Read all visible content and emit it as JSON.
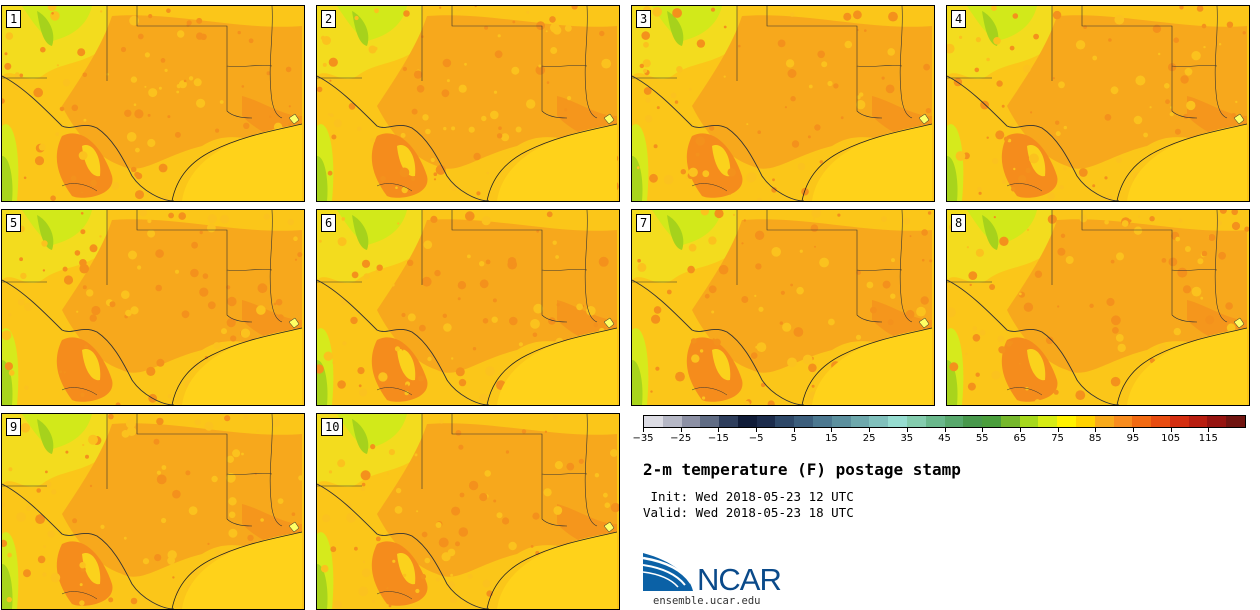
{
  "panels": [
    "1",
    "2",
    "3",
    "4",
    "5",
    "6",
    "7",
    "8",
    "9",
    "10"
  ],
  "colorbar": {
    "colors": [
      "#dcdce4",
      "#b6b8c6",
      "#8c90a4",
      "#606c84",
      "#2e3e5c",
      "#101c38",
      "#1c2c4c",
      "#2e4868",
      "#3c5e7c",
      "#4c7890",
      "#5c909e",
      "#6ea8ac",
      "#80c0bc",
      "#96dcd0",
      "#84ccae",
      "#6ab88c",
      "#58a86c",
      "#48984c",
      "#4a9e3c",
      "#76b82c",
      "#a6d81c",
      "#d6ec14",
      "#fff200",
      "#ffd200",
      "#f8aa1a",
      "#f88c1e",
      "#f26a12",
      "#e84c10",
      "#d42e10",
      "#b81e10",
      "#961410",
      "#701410"
    ],
    "tick_labels": [
      "−35",
      "−25",
      "−15",
      "−5",
      "5",
      "15",
      "25",
      "35",
      "45",
      "55",
      "65",
      "75",
      "85",
      "95",
      "105",
      "115"
    ]
  },
  "title": "2-m temperature (F) postage stamp",
  "init": " Init: Wed 2018-05-23 12 UTC",
  "valid": "Valid: Wed 2018-05-23 18 UTC",
  "logo_text": "NCAR",
  "logo_url": "ensemble.ucar.edu"
}
